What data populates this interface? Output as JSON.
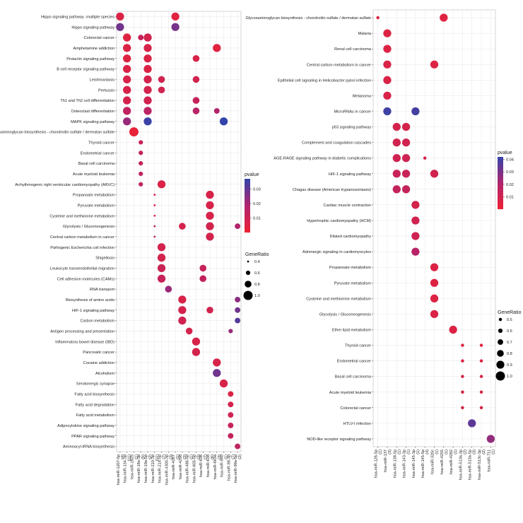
{
  "chart_data": [
    {
      "type": "scatter",
      "title": "",
      "rows": [
        "Hippo signaling pathway -multiple species",
        "Hippo signaling pathway",
        "Colorectal cancer",
        "Amphetamine addiction",
        "Prolactin signaling pathway",
        "B cell receptor signaling pathway",
        "Leishmaniasis",
        "Pertussis",
        "Th1 and Th2 cell differentiation",
        "Osteoclast differentiation",
        "MAPK signaling pathway",
        "Glycosaminoglycan biosynthesis - chondroitin sulfate / dermatan sulfate",
        "Thyroid cancer",
        "Endometrial cancer",
        "Basal cell carcinoma",
        "Acute myeloid leukemia",
        "Arrhythmogenic right ventricular cardiomyopathy (ARVC)",
        "Propanoate metabolism",
        "Pyruvate metabolism",
        "Cysteine and methionine metabolism",
        "Glycolysis / Gluconeogenesis",
        "Central carbon metabolism in cancer",
        "Pathogenic Escherichia coli infection",
        "Shigellosis",
        "Leukocyte transendothelial migration",
        "Cell adhesion molecules (CAMs)",
        "RNA transport",
        "Biosynthesis of amino acids",
        "HIF-1 signaling pathway",
        "Carbon metabolism",
        "Antigen processing and presentation",
        "Inflammatory bowel disease (IBD)",
        "Pancreatic cancer",
        "Cocaine addiction",
        "Alcoholism",
        "Serotonergic synapse",
        "Fatty acid biosynthesis",
        "Fatty acid degradation",
        "Fatty acid metabolism",
        "Adipocytokine signaling pathway",
        "PPAR signaling pathway",
        "Aminoacyl-tRNA biosynthesis"
      ],
      "columns": [
        [
          "hsa-miR-1207-5p",
          "(4)"
        ],
        [
          "hsa-miR-134-3p",
          "(11)"
        ],
        [
          "hsa-miR-1825",
          "(1)"
        ],
        [
          "hsa-miR-18a-3p",
          "(5)"
        ],
        [
          "hsa-miR-19a-5p",
          "(2)"
        ],
        [
          "hsa-miR-210-3p",
          "(11)"
        ],
        [
          "hsa-miR-214-5p",
          "(7)"
        ],
        [
          "hsa-miR-4300-3p",
          "(3)"
        ],
        [
          "hsa-miR-4267",
          "(1)"
        ],
        [
          "hsa-miR-4298",
          "(3)"
        ],
        [
          "hsa-miR-486-5p",
          "(1)"
        ],
        [
          "hsa-miR-605-5p",
          "(3)"
        ],
        [
          "hsa-miR-636",
          "(7)"
        ],
        [
          "hsa-miR-638",
          "(6)"
        ],
        [
          "hsa-miR-663a",
          "(3)"
        ],
        [
          "hsa-miR-940",
          "(1)"
        ],
        [
          "hsa-miR-98-3p",
          "(7)"
        ],
        [
          "hsa-miR-99a-5p",
          "(2)"
        ]
      ],
      "points": [
        {
          "r": 0,
          "c": 0,
          "p": 0.006,
          "g": 0.9
        },
        {
          "r": 0,
          "c": 8,
          "p": 0.004,
          "g": 0.9
        },
        {
          "r": 1,
          "c": 0,
          "p": 0.028,
          "g": 0.9
        },
        {
          "r": 1,
          "c": 8,
          "p": 0.027,
          "g": 0.9
        },
        {
          "r": 2,
          "c": 1,
          "p": 0.005,
          "g": 0.9
        },
        {
          "r": 2,
          "c": 3,
          "p": 0.012,
          "g": 0.7
        },
        {
          "r": 2,
          "c": 4,
          "p": 0.008,
          "g": 0.9
        },
        {
          "r": 3,
          "c": 1,
          "p": 0.006,
          "g": 0.9
        },
        {
          "r": 3,
          "c": 4,
          "p": 0.007,
          "g": 0.9
        },
        {
          "r": 3,
          "c": 14,
          "p": 0.004,
          "g": 0.9
        },
        {
          "r": 4,
          "c": 1,
          "p": 0.005,
          "g": 0.9
        },
        {
          "r": 4,
          "c": 4,
          "p": 0.006,
          "g": 0.9
        },
        {
          "r": 4,
          "c": 11,
          "p": 0.007,
          "g": 0.8
        },
        {
          "r": 5,
          "c": 1,
          "p": 0.006,
          "g": 0.9
        },
        {
          "r": 5,
          "c": 4,
          "p": 0.006,
          "g": 0.9
        },
        {
          "r": 6,
          "c": 1,
          "p": 0.007,
          "g": 0.9
        },
        {
          "r": 6,
          "c": 4,
          "p": 0.008,
          "g": 0.9
        },
        {
          "r": 6,
          "c": 6,
          "p": 0.009,
          "g": 0.8
        },
        {
          "r": 6,
          "c": 11,
          "p": 0.009,
          "g": 0.8
        },
        {
          "r": 7,
          "c": 1,
          "p": 0.007,
          "g": 0.9
        },
        {
          "r": 7,
          "c": 4,
          "p": 0.008,
          "g": 0.9
        },
        {
          "r": 7,
          "c": 6,
          "p": 0.009,
          "g": 0.8
        },
        {
          "r": 8,
          "c": 1,
          "p": 0.008,
          "g": 0.9
        },
        {
          "r": 8,
          "c": 4,
          "p": 0.009,
          "g": 0.9
        },
        {
          "r": 8,
          "c": 11,
          "p": 0.012,
          "g": 0.8
        },
        {
          "r": 9,
          "c": 1,
          "p": 0.014,
          "g": 0.9
        },
        {
          "r": 9,
          "c": 4,
          "p": 0.015,
          "g": 0.9
        },
        {
          "r": 9,
          "c": 11,
          "p": 0.016,
          "g": 0.8
        },
        {
          "r": 9,
          "c": 14,
          "p": 0.018,
          "g": 0.7
        },
        {
          "r": 10,
          "c": 1,
          "p": 0.022,
          "g": 0.9
        },
        {
          "r": 10,
          "c": 4,
          "p": 0.036,
          "g": 0.9
        },
        {
          "r": 10,
          "c": 15,
          "p": 0.038,
          "g": 0.9
        },
        {
          "r": 11,
          "c": 2,
          "p": 0.002,
          "g": 1.0
        },
        {
          "r": 12,
          "c": 3,
          "p": 0.012,
          "g": 0.6
        },
        {
          "r": 13,
          "c": 3,
          "p": 0.013,
          "g": 0.6
        },
        {
          "r": 14,
          "c": 3,
          "p": 0.013,
          "g": 0.6
        },
        {
          "r": 15,
          "c": 3,
          "p": 0.014,
          "g": 0.6
        },
        {
          "r": 16,
          "c": 3,
          "p": 0.014,
          "g": 0.6
        },
        {
          "r": 16,
          "c": 6,
          "p": 0.006,
          "g": 0.9
        },
        {
          "r": 17,
          "c": 5,
          "p": 0.006,
          "g": 0.4
        },
        {
          "r": 17,
          "c": 13,
          "p": 0.007,
          "g": 0.9
        },
        {
          "r": 18,
          "c": 5,
          "p": 0.006,
          "g": 0.4
        },
        {
          "r": 18,
          "c": 13,
          "p": 0.007,
          "g": 0.9
        },
        {
          "r": 19,
          "c": 5,
          "p": 0.006,
          "g": 0.4
        },
        {
          "r": 19,
          "c": 13,
          "p": 0.007,
          "g": 0.9
        },
        {
          "r": 20,
          "c": 5,
          "p": 0.015,
          "g": 0.4
        },
        {
          "r": 20,
          "c": 9,
          "p": 0.008,
          "g": 0.8
        },
        {
          "r": 20,
          "c": 13,
          "p": 0.008,
          "g": 0.9
        },
        {
          "r": 20,
          "c": 17,
          "p": 0.018,
          "g": 0.7
        },
        {
          "r": 21,
          "c": 5,
          "p": 0.016,
          "g": 0.4
        },
        {
          "r": 21,
          "c": 13,
          "p": 0.008,
          "g": 0.9
        },
        {
          "r": 22,
          "c": 6,
          "p": 0.008,
          "g": 0.9
        },
        {
          "r": 23,
          "c": 6,
          "p": 0.008,
          "g": 0.9
        },
        {
          "r": 24,
          "c": 6,
          "p": 0.011,
          "g": 0.9
        },
        {
          "r": 24,
          "c": 12,
          "p": 0.012,
          "g": 0.8
        },
        {
          "r": 25,
          "c": 6,
          "p": 0.012,
          "g": 0.9
        },
        {
          "r": 25,
          "c": 12,
          "p": 0.013,
          "g": 0.8
        },
        {
          "r": 26,
          "c": 7,
          "p": 0.022,
          "g": 0.8
        },
        {
          "r": 27,
          "c": 9,
          "p": 0.007,
          "g": 0.9
        },
        {
          "r": 27,
          "c": 17,
          "p": 0.024,
          "g": 0.7
        },
        {
          "r": 28,
          "c": 9,
          "p": 0.008,
          "g": 0.9
        },
        {
          "r": 28,
          "c": 13,
          "p": 0.009,
          "g": 0.8
        },
        {
          "r": 28,
          "c": 17,
          "p": 0.028,
          "g": 0.7
        },
        {
          "r": 29,
          "c": 9,
          "p": 0.009,
          "g": 0.9
        },
        {
          "r": 29,
          "c": 17,
          "p": 0.032,
          "g": 0.7
        },
        {
          "r": 30,
          "c": 10,
          "p": 0.008,
          "g": 0.8
        },
        {
          "r": 30,
          "c": 16,
          "p": 0.022,
          "g": 0.6
        },
        {
          "r": 31,
          "c": 11,
          "p": 0.007,
          "g": 0.9
        },
        {
          "r": 32,
          "c": 11,
          "p": 0.008,
          "g": 0.9
        },
        {
          "r": 33,
          "c": 14,
          "p": 0.007,
          "g": 0.9
        },
        {
          "r": 34,
          "c": 14,
          "p": 0.028,
          "g": 0.9
        },
        {
          "r": 35,
          "c": 15,
          "p": 0.007,
          "g": 0.9
        },
        {
          "r": 36,
          "c": 16,
          "p": 0.006,
          "g": 0.7
        },
        {
          "r": 37,
          "c": 16,
          "p": 0.008,
          "g": 0.7
        },
        {
          "r": 38,
          "c": 16,
          "p": 0.009,
          "g": 0.7
        },
        {
          "r": 39,
          "c": 16,
          "p": 0.012,
          "g": 0.7
        },
        {
          "r": 40,
          "c": 16,
          "p": 0.013,
          "g": 0.7
        },
        {
          "r": 41,
          "c": 17,
          "p": 0.014,
          "g": 0.7
        }
      ],
      "legend_color": {
        "title": "pvalue",
        "ticks": [
          "0.03",
          "0.02",
          "0.01"
        ],
        "tick_values": [
          0.03,
          0.02,
          0.01
        ],
        "range": [
          0.0,
          0.037
        ]
      },
      "legend_size": {
        "title": "GeneRatio",
        "ticks": [
          "0.4",
          "0.6",
          "0.8",
          "1.0"
        ],
        "tick_values": [
          0.4,
          0.6,
          0.8,
          1.0
        ]
      },
      "grid": true
    },
    {
      "type": "scatter",
      "title": "",
      "rows": [
        "Glycosaminoglycan biosynthesis - chondroitin sulfate / dermatan sulfate",
        "Malaria",
        "Renal cell carcinoma",
        "Central carbon metabolism in cancer",
        "Epithelial cell signaling in Helicobacter pylori infection",
        "Melanoma",
        "MicroRNAs in cancer",
        "p53 signaling pathway",
        "Complement and coagulation cascades",
        "AGE-RAGE signaling pathway in diabetic complications",
        "HIF-1 signaling pathway",
        "Chagas disease (American trypanosomiasis)",
        "Cardiac muscle contraction",
        "Hypertrophic cardiomyopathy (HCM)",
        "Dilated cardiomyopathy",
        "Adrenergic signaling in cardiomyocytes",
        "Propanoate metabolism",
        "Pyruvate metabolism",
        "Cysteine and methionine metabolism",
        "Glycolysis / Gluconeogenesis",
        "Ether lipid metabolism",
        "Thyroid cancer",
        "Endometrial cancer",
        "Basal cell carcinoma",
        "Acute myeloid leukemia",
        "Colorectal cancer",
        "HTLV-I infection",
        "NOD-like receptor signaling pathway"
      ],
      "columns": [
        [
          "hsa-miR-126-5p",
          "(1)"
        ],
        [
          "hsa-miR-137",
          "(3)"
        ],
        [
          "hsa-miR-138-5p",
          "(1)"
        ],
        [
          "hsa-miR-143-3p",
          "(1)"
        ],
        [
          "hsa-miR-145-3p",
          "(1)"
        ],
        [
          "hsa-miR-145-5p",
          "(4)"
        ],
        [
          "hsa-miR-320c",
          "(1)"
        ],
        [
          "hsa-miR-4255",
          "(1)"
        ],
        [
          "hsa-miR-4282",
          "(1)"
        ],
        [
          "hsa-miR-513a-3p",
          "(2)"
        ],
        [
          "hsa-miR-513a-5p",
          "(3)"
        ],
        [
          "hsa-miR-513c-3p",
          "(2)"
        ],
        [
          "hsa-miR-711",
          "(1)"
        ]
      ],
      "points": [
        {
          "r": 0,
          "c": 0,
          "p": 0.006,
          "g": 0.5
        },
        {
          "r": 0,
          "c": 7,
          "p": 0.005,
          "g": 0.9
        },
        {
          "r": 1,
          "c": 1,
          "p": 0.006,
          "g": 0.9
        },
        {
          "r": 2,
          "c": 1,
          "p": 0.006,
          "g": 0.9
        },
        {
          "r": 3,
          "c": 1,
          "p": 0.007,
          "g": 0.9
        },
        {
          "r": 3,
          "c": 6,
          "p": 0.006,
          "g": 0.9
        },
        {
          "r": 4,
          "c": 1,
          "p": 0.007,
          "g": 0.9
        },
        {
          "r": 5,
          "c": 1,
          "p": 0.007,
          "g": 0.9
        },
        {
          "r": 6,
          "c": 1,
          "p": 0.04,
          "g": 0.9
        },
        {
          "r": 6,
          "c": 4,
          "p": 0.039,
          "g": 0.9
        },
        {
          "r": 7,
          "c": 2,
          "p": 0.009,
          "g": 0.9
        },
        {
          "r": 7,
          "c": 3,
          "p": 0.009,
          "g": 0.9
        },
        {
          "r": 8,
          "c": 2,
          "p": 0.01,
          "g": 0.9
        },
        {
          "r": 8,
          "c": 3,
          "p": 0.01,
          "g": 0.9
        },
        {
          "r": 9,
          "c": 2,
          "p": 0.011,
          "g": 0.9
        },
        {
          "r": 9,
          "c": 3,
          "p": 0.011,
          "g": 0.9
        },
        {
          "r": 9,
          "c": 5,
          "p": 0.008,
          "g": 0.5
        },
        {
          "r": 10,
          "c": 2,
          "p": 0.013,
          "g": 0.9
        },
        {
          "r": 10,
          "c": 3,
          "p": 0.013,
          "g": 0.9
        },
        {
          "r": 10,
          "c": 6,
          "p": 0.01,
          "g": 0.9
        },
        {
          "r": 11,
          "c": 2,
          "p": 0.015,
          "g": 0.9
        },
        {
          "r": 11,
          "c": 3,
          "p": 0.015,
          "g": 0.9
        },
        {
          "r": 12,
          "c": 4,
          "p": 0.009,
          "g": 0.9
        },
        {
          "r": 13,
          "c": 4,
          "p": 0.01,
          "g": 0.9
        },
        {
          "r": 14,
          "c": 4,
          "p": 0.011,
          "g": 0.9
        },
        {
          "r": 15,
          "c": 4,
          "p": 0.018,
          "g": 0.9
        },
        {
          "r": 16,
          "c": 6,
          "p": 0.006,
          "g": 0.9
        },
        {
          "r": 17,
          "c": 6,
          "p": 0.006,
          "g": 0.9
        },
        {
          "r": 18,
          "c": 6,
          "p": 0.006,
          "g": 0.9
        },
        {
          "r": 19,
          "c": 6,
          "p": 0.007,
          "g": 0.9
        },
        {
          "r": 20,
          "c": 8,
          "p": 0.006,
          "g": 0.9
        },
        {
          "r": 21,
          "c": 9,
          "p": 0.006,
          "g": 0.5
        },
        {
          "r": 21,
          "c": 11,
          "p": 0.006,
          "g": 0.5
        },
        {
          "r": 22,
          "c": 9,
          "p": 0.006,
          "g": 0.5
        },
        {
          "r": 22,
          "c": 11,
          "p": 0.006,
          "g": 0.5
        },
        {
          "r": 23,
          "c": 9,
          "p": 0.007,
          "g": 0.5
        },
        {
          "r": 23,
          "c": 11,
          "p": 0.007,
          "g": 0.5
        },
        {
          "r": 24,
          "c": 9,
          "p": 0.007,
          "g": 0.5
        },
        {
          "r": 24,
          "c": 11,
          "p": 0.007,
          "g": 0.5
        },
        {
          "r": 25,
          "c": 9,
          "p": 0.008,
          "g": 0.5
        },
        {
          "r": 25,
          "c": 11,
          "p": 0.008,
          "g": 0.5
        },
        {
          "r": 26,
          "c": 10,
          "p": 0.035,
          "g": 0.9
        },
        {
          "r": 27,
          "c": 12,
          "p": 0.026,
          "g": 0.9
        }
      ],
      "legend_color": {
        "title": "pvalue",
        "ticks": [
          "0.04",
          "0.03",
          "0.02",
          "0.01"
        ],
        "tick_values": [
          0.04,
          0.03,
          0.02,
          0.01
        ],
        "range": [
          0.0,
          0.042
        ]
      },
      "legend_size": {
        "title": "GeneRatio",
        "ticks": [
          "0.5",
          "0.6",
          "0.7",
          "0.8",
          "0.9",
          "1.0"
        ],
        "tick_values": [
          0.5,
          0.6,
          0.7,
          0.8,
          0.9,
          1.0
        ]
      },
      "grid": true
    }
  ],
  "colors": {
    "low": "#ee2233",
    "mid": "#b0246e",
    "high": "#3344aa",
    "grid": "#e6e6e6",
    "panel_border": "#bbbbbb"
  }
}
